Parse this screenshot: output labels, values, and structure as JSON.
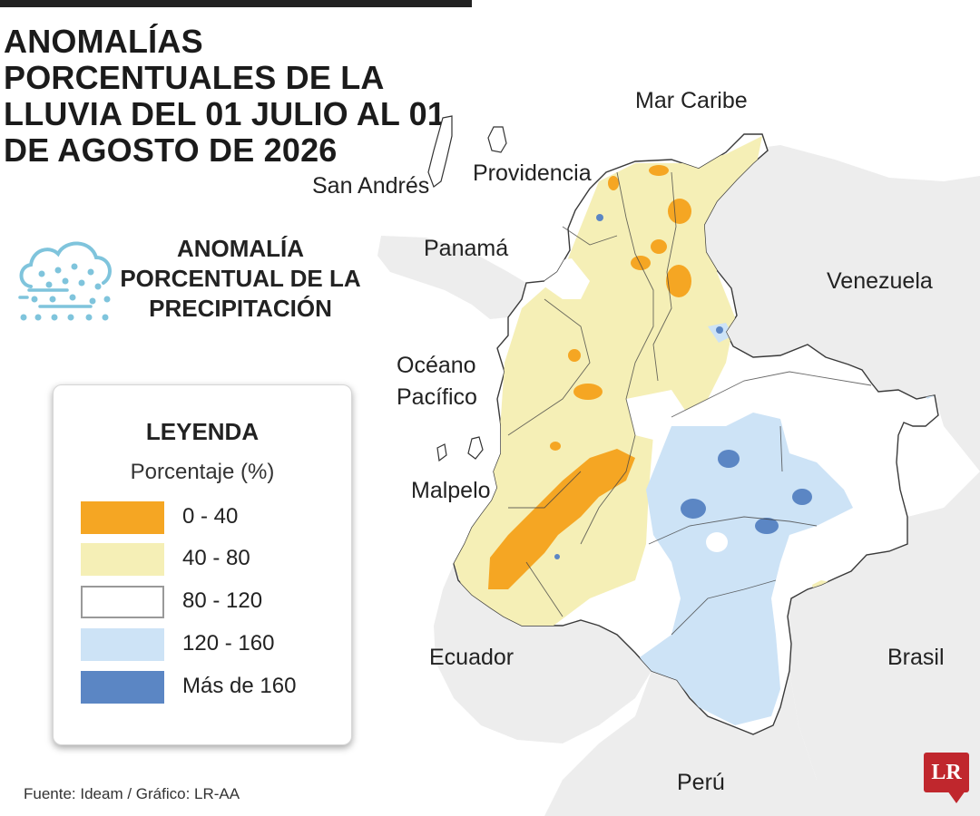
{
  "title": "ANOMALÍAS PORCENTUALES DE LA LLUVIA DEL 01 JULIO AL 01 DE AGOSTO DE 2026",
  "subtitle": "ANOMALÍA PORCENTUAL DE LA PRECIPITACIÓN",
  "icon": "cloud-rain-icon",
  "places": {
    "mar_caribe": "Mar Caribe",
    "providencia": "Providencia",
    "san_andres": "San Andrés",
    "panama": "Panamá",
    "venezuela": "Venezuela",
    "oceano": "Océano",
    "pacifico": "Pacífico",
    "malpelo": "Malpelo",
    "ecuador": "Ecuador",
    "brasil": "Brasil",
    "peru": "Perú"
  },
  "legend": {
    "title": "LEYENDA",
    "unit": "Porcentaje (%)",
    "items": [
      {
        "label": "0 - 40",
        "color": "#f5a623"
      },
      {
        "label": "40 - 80",
        "color": "#f5efb6"
      },
      {
        "label": "80 - 120",
        "color": "#ffffff"
      },
      {
        "label": "120 - 160",
        "color": "#cde3f6"
      },
      {
        "label": "Más de 160",
        "color": "#5b86c4"
      }
    ]
  },
  "colors": {
    "land_neighbors": "#ececec",
    "sea": "#ffffff",
    "orange": "#f5a623",
    "yellow": "#f5efb6",
    "light_blue": "#cde3f6",
    "dark_blue": "#5b86c4",
    "brand": "#c0272d"
  },
  "footer": "Fuente: Ideam / Gráfico: LR-AA",
  "logo": "LR"
}
